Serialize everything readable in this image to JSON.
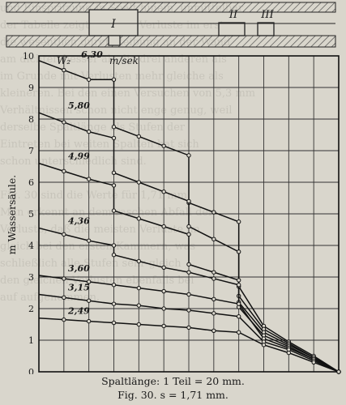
{
  "page": {
    "bleed_text": "und Einspritzung in Spalt hinein, unmittelbar\nder Tabelle zeigt, daß die Verluste im ersten\ndie wesentlich durch Reibung an der Wand\nam dichten besser als die drei anderen als\nim Grunde mit Verlusten mehr gleiche als\nkleineren. Bei den einen Versuchen von 5,3 mm\nVerhältnissen schon nicht enge genug, weil\nderselbe Spaltlänge als Stufen der\nEintreten bei weiten Spalten hat sich\nschon unterschiedlich sind.\n\nFig. 30 sind die Werte für 1,71 mm\nMan erkennt an dem raschen Abfall der\nVerluste, daß die meisten Verluste im\ngleich bei den ersten Kammern, was\nschließlich alle Stufen sehr gleich\nden gleichen Verlusten ebenfalls bei\nauf aufgenommen."
  },
  "figure": {
    "chambers": [
      "I",
      "II",
      "III"
    ],
    "ylabel": "m Wassersäule.",
    "yticks": [
      "0",
      "1",
      "2",
      "3",
      "4",
      "5",
      "6",
      "7",
      "8",
      "9",
      "10"
    ],
    "legend_symbol": "W₂",
    "unit": "m/sek",
    "caption_line1": "Spaltlänge: 1 Teil = 20 mm.",
    "caption_line2": "Fig. 30.   s = 1,71 mm."
  },
  "chart_data": {
    "type": "line",
    "ylim": [
      0,
      10
    ],
    "xlim": [
      0,
      12
    ],
    "ylabel": "m Wassersäule.",
    "xlabel": "Spaltlänge: 1 Teil = 20 mm.",
    "grid": true,
    "series": [
      {
        "name": "6,30",
        "points": [
          [
            0,
            9.85
          ],
          [
            1,
            9.55
          ],
          [
            2,
            9.25
          ],
          [
            3,
            9.25
          ],
          [
            3,
            7.75
          ],
          [
            4,
            7.45
          ],
          [
            5,
            7.15
          ],
          [
            6,
            6.85
          ],
          [
            6,
            5.35
          ],
          [
            7,
            5.05
          ],
          [
            8,
            4.75
          ],
          [
            8,
            2.7
          ],
          [
            9,
            1.45
          ],
          [
            10,
            0.95
          ],
          [
            11,
            0.5
          ],
          [
            12,
            0
          ]
        ]
      },
      {
        "name": "5,80",
        "points": [
          [
            0,
            8.2
          ],
          [
            1,
            7.9
          ],
          [
            2,
            7.6
          ],
          [
            3,
            7.4
          ],
          [
            3,
            6.3
          ],
          [
            4,
            6.0
          ],
          [
            5,
            5.7
          ],
          [
            6,
            5.4
          ],
          [
            6,
            4.6
          ],
          [
            7,
            4.2
          ],
          [
            8,
            3.8
          ],
          [
            8,
            2.4
          ],
          [
            9,
            1.35
          ],
          [
            10,
            0.9
          ],
          [
            11,
            0.45
          ],
          [
            12,
            0
          ]
        ]
      },
      {
        "name": "4,99",
        "points": [
          [
            0,
            6.6
          ],
          [
            1,
            6.35
          ],
          [
            2,
            6.1
          ],
          [
            3,
            5.9
          ],
          [
            3,
            5.1
          ],
          [
            4,
            4.85
          ],
          [
            5,
            4.6
          ],
          [
            6,
            4.35
          ],
          [
            6,
            3.4
          ],
          [
            7,
            3.15
          ],
          [
            8,
            2.9
          ],
          [
            8,
            2.2
          ],
          [
            9,
            1.25
          ],
          [
            10,
            0.85
          ],
          [
            11,
            0.45
          ],
          [
            12,
            0
          ]
        ]
      },
      {
        "name": "4,36",
        "points": [
          [
            0,
            4.55
          ],
          [
            1,
            4.35
          ],
          [
            2,
            4.15
          ],
          [
            3,
            4.0
          ],
          [
            3,
            3.7
          ],
          [
            4,
            3.5
          ],
          [
            5,
            3.3
          ],
          [
            6,
            3.15
          ],
          [
            7,
            2.95
          ],
          [
            8,
            2.75
          ],
          [
            8,
            2.05
          ],
          [
            9,
            1.15
          ],
          [
            10,
            0.8
          ],
          [
            11,
            0.4
          ],
          [
            12,
            0
          ]
        ]
      },
      {
        "name": "3,60",
        "points": [
          [
            0,
            3.05
          ],
          [
            1,
            2.95
          ],
          [
            2,
            2.85
          ],
          [
            3,
            2.75
          ],
          [
            4,
            2.65
          ],
          [
            5,
            2.55
          ],
          [
            6,
            2.45
          ],
          [
            7,
            2.3
          ],
          [
            8,
            2.15
          ],
          [
            9,
            1.05
          ],
          [
            10,
            0.75
          ],
          [
            11,
            0.4
          ],
          [
            12,
            0
          ]
        ]
      },
      {
        "name": "3,15",
        "points": [
          [
            0,
            2.45
          ],
          [
            1,
            2.35
          ],
          [
            2,
            2.25
          ],
          [
            3,
            2.15
          ],
          [
            4,
            2.1
          ],
          [
            5,
            2.0
          ],
          [
            6,
            1.95
          ],
          [
            7,
            1.85
          ],
          [
            8,
            1.75
          ],
          [
            9,
            0.95
          ],
          [
            10,
            0.7
          ],
          [
            11,
            0.35
          ],
          [
            12,
            0
          ]
        ]
      },
      {
        "name": "2,49",
        "points": [
          [
            0,
            1.7
          ],
          [
            1,
            1.65
          ],
          [
            2,
            1.6
          ],
          [
            3,
            1.55
          ],
          [
            4,
            1.5
          ],
          [
            5,
            1.45
          ],
          [
            6,
            1.4
          ],
          [
            7,
            1.3
          ],
          [
            8,
            1.25
          ],
          [
            9,
            0.85
          ],
          [
            10,
            0.6
          ],
          [
            11,
            0.3
          ],
          [
            12,
            0
          ]
        ]
      }
    ]
  }
}
